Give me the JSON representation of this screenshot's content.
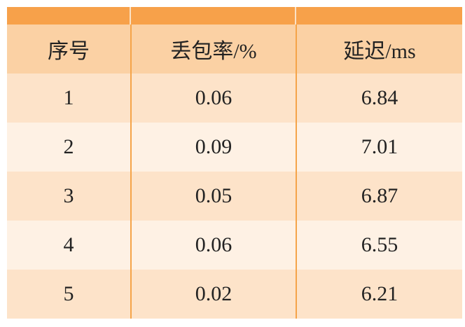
{
  "table": {
    "columns": [
      "序号",
      "丢包率/%",
      "延迟/ms"
    ],
    "rows": [
      [
        "1",
        "0.06",
        "6.84"
      ],
      [
        "2",
        "0.09",
        "7.01"
      ],
      [
        "3",
        "0.05",
        "6.87"
      ],
      [
        "4",
        "0.06",
        "6.55"
      ],
      [
        "5",
        "0.02",
        "6.21"
      ]
    ]
  }
}
